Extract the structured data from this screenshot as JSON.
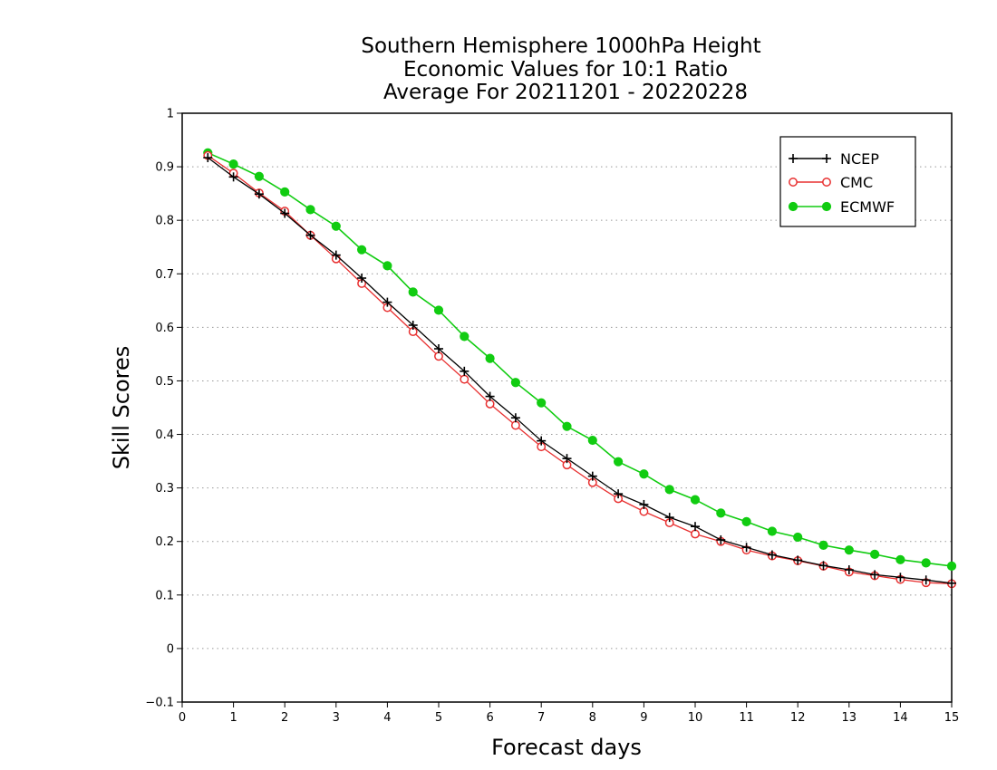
{
  "chart_data": {
    "type": "line",
    "title_lines": [
      "Southern Hemisphere 1000hPa Height",
      "Economic Values for 10:1 Ratio",
      "Average For 20211201 - 20220228"
    ],
    "xlabel": "Forecast days",
    "ylabel": "Skill Scores",
    "xlim": [
      0,
      15
    ],
    "ylim": [
      -0.1,
      1
    ],
    "x_ticks": [
      "0",
      "1",
      "2",
      "3",
      "4",
      "5",
      "6",
      "7",
      "8",
      "9",
      "10",
      "11",
      "12",
      "13",
      "14",
      "15"
    ],
    "y_ticks": [
      "−0.1",
      "0",
      "0.1",
      "0.2",
      "0.3",
      "0.4",
      "0.5",
      "0.6",
      "0.7",
      "0.8",
      "0.9",
      "1"
    ],
    "grid": "horizontal dotted",
    "legend_position": "top-right",
    "x": [
      0.5,
      1,
      1.5,
      2,
      2.5,
      3,
      3.5,
      4,
      4.5,
      5,
      5.5,
      6,
      6.5,
      7,
      7.5,
      8,
      8.5,
      9,
      9.5,
      10,
      10.5,
      11,
      11.5,
      12,
      12.5,
      13,
      13.5,
      14,
      14.5,
      15
    ],
    "series": [
      {
        "name": "NCEP",
        "color": "#000000",
        "marker": "plus",
        "values": [
          0.917,
          0.881,
          0.849,
          0.813,
          0.772,
          0.735,
          0.692,
          0.647,
          0.604,
          0.56,
          0.518,
          0.471,
          0.431,
          0.388,
          0.355,
          0.322,
          0.289,
          0.269,
          0.245,
          0.228,
          0.203,
          0.189,
          0.175,
          0.165,
          0.155,
          0.147,
          0.138,
          0.133,
          0.128,
          0.122
        ]
      },
      {
        "name": "CMC",
        "color": "#e83030",
        "marker": "open-circle",
        "values": [
          0.921,
          0.888,
          0.851,
          0.817,
          0.772,
          0.728,
          0.682,
          0.637,
          0.592,
          0.546,
          0.503,
          0.457,
          0.417,
          0.377,
          0.343,
          0.31,
          0.28,
          0.256,
          0.235,
          0.214,
          0.2,
          0.184,
          0.173,
          0.164,
          0.154,
          0.143,
          0.136,
          0.129,
          0.123,
          0.121
        ]
      },
      {
        "name": "ECMWF",
        "color": "#11cc11",
        "marker": "filled-circle",
        "values": [
          0.926,
          0.905,
          0.882,
          0.853,
          0.82,
          0.789,
          0.745,
          0.715,
          0.666,
          0.632,
          0.583,
          0.542,
          0.497,
          0.459,
          0.415,
          0.389,
          0.349,
          0.326,
          0.297,
          0.278,
          0.253,
          0.237,
          0.219,
          0.208,
          0.193,
          0.184,
          0.176,
          0.166,
          0.16,
          0.154
        ]
      }
    ]
  }
}
